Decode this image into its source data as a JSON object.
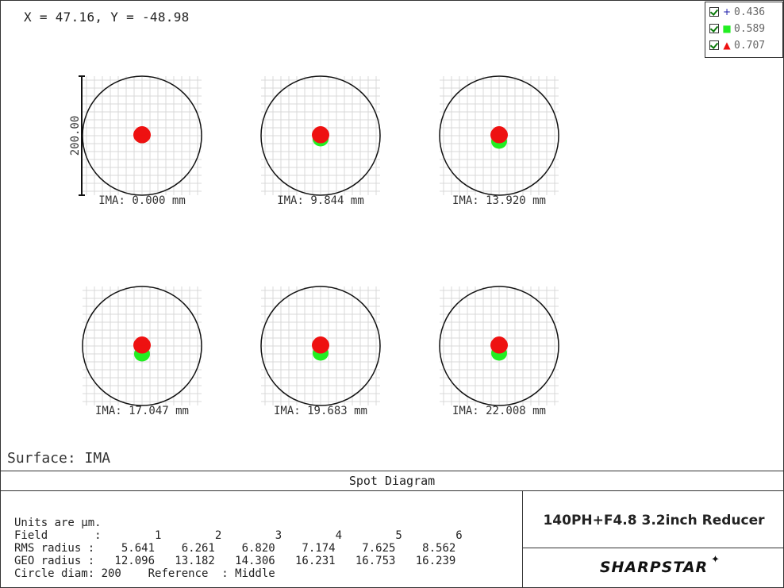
{
  "coordinate_readout": "X = 47.16, Y = -48.98",
  "legend": [
    {
      "value": "0.436",
      "color": "#1a1aa8",
      "marker": "+"
    },
    {
      "value": "0.589",
      "color": "#22ee22",
      "marker": "■"
    },
    {
      "value": "0.707",
      "color": "#ee1111",
      "marker": "▲"
    }
  ],
  "scale_bar_label": "200.00",
  "fields": [
    {
      "label": "IMA: 0.000 mm",
      "green_offset": 0,
      "red_offset": 0
    },
    {
      "label": "IMA: 9.844 mm",
      "green_offset": 4,
      "red_offset": 0
    },
    {
      "label": "IMA: 13.920 mm",
      "green_offset": 7,
      "red_offset": 0
    },
    {
      "label": "IMA: 17.047 mm",
      "green_offset": 10,
      "red_offset": 0
    },
    {
      "label": "IMA: 19.683 mm",
      "green_offset": 9,
      "red_offset": 0
    },
    {
      "label": "IMA: 22.008 mm",
      "green_offset": 9,
      "red_offset": 0
    }
  ],
  "surface_label": "Surface: IMA",
  "diagram_title": "Spot Diagram",
  "info": {
    "units": "Units are µm.",
    "field_row": "Field       :        1        2        3        4        5        6",
    "rms_row": "RMS radius :    5.641    6.261    6.820    7.174    7.625    8.562",
    "geo_row": "GEO radius :   12.096   13.182   14.306   16.231   16.753   16.239",
    "circle_row": "Circle diam: 200    Reference  : Middle"
  },
  "project_name": "140PH+F4.8 3.2inch Reducer",
  "brand": "SHARPSTAR",
  "colors": {
    "green": "#22ee22",
    "red": "#ee1111",
    "grid": "#d8d8d8"
  }
}
